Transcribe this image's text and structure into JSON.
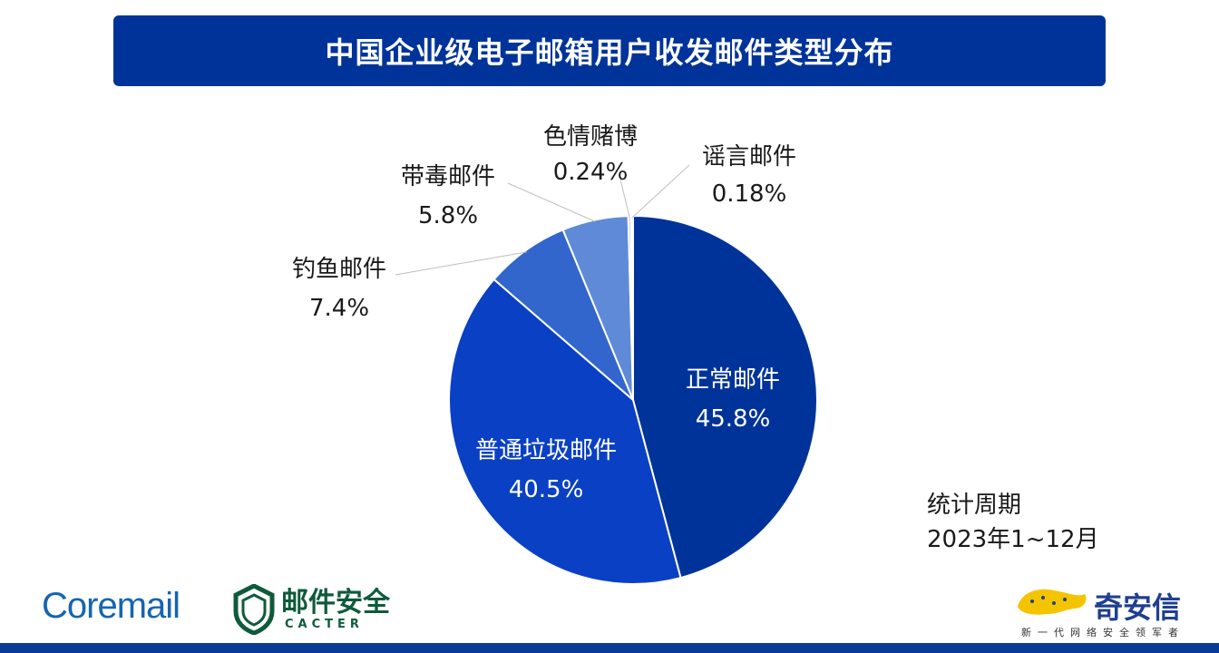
{
  "title": "中国企业级电子邮箱用户收发邮件类型分布",
  "chart_data": {
    "type": "pie",
    "title": "中国企业级电子邮箱用户收发邮件类型分布",
    "slices": [
      {
        "name": "正常邮件",
        "value": 45.8,
        "label": "45.8%",
        "color": "#003399"
      },
      {
        "name": "普通垃圾邮件",
        "value": 40.5,
        "label": "40.5%",
        "color": "#0a40c4"
      },
      {
        "name": "钓鱼邮件",
        "value": 7.4,
        "label": "7.4%",
        "color": "#3366cc"
      },
      {
        "name": "带毒邮件",
        "value": 5.8,
        "label": "5.8%",
        "color": "#5f8ad8"
      },
      {
        "name": "色情赌博",
        "value": 0.24,
        "label": "0.24%",
        "color": "#b7c8ee"
      },
      {
        "name": "谣言邮件",
        "value": 0.18,
        "label": "0.18%",
        "color": "#dbe4f7"
      }
    ]
  },
  "period": {
    "label": "统计周期",
    "value": "2023年1~12月"
  },
  "logos": {
    "coremail": "Coremail",
    "cacter_name": "邮件安全",
    "cacter_sub": "CACTER",
    "qax_name": "奇安信",
    "qax_slogan": "新一代网络安全领军者",
    "qax_color": "#1f3f8f",
    "cacter_color": "#0e5b3b",
    "coremail_color": "#1565b0"
  }
}
